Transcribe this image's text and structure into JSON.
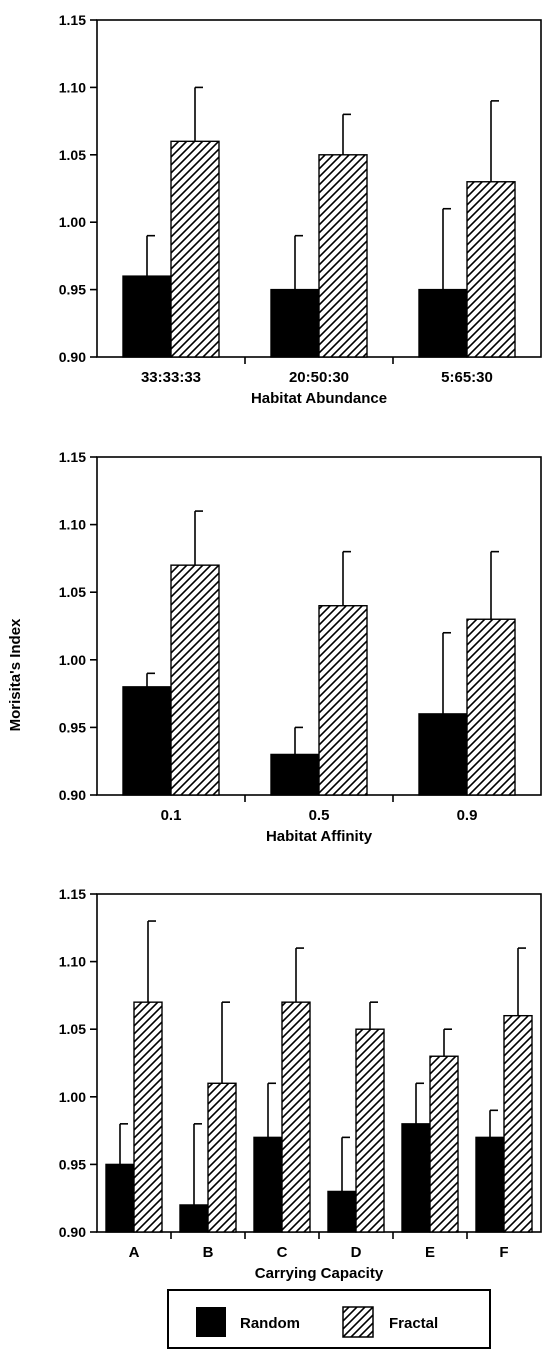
{
  "figure": {
    "ylabel": "Morisita's Index",
    "legend": {
      "position": "bottom-center",
      "items": [
        {
          "label": "Random",
          "pattern": "solid"
        },
        {
          "label": "Fractal",
          "pattern": "hatched"
        }
      ]
    },
    "colors": {
      "random": "#000000",
      "fractal_hatch": "#000000",
      "background": "#ffffff"
    }
  },
  "chart_data": [
    {
      "type": "bar",
      "xlabel": "Habitat Abundance",
      "categories": [
        "33:33:33",
        "20:50:30",
        "5:65:30"
      ],
      "ylim": [
        0.9,
        1.15
      ],
      "yticks": [
        "0.90",
        "0.95",
        "1.00",
        "1.05",
        "1.10",
        "1.15"
      ],
      "series": [
        {
          "name": "Random",
          "values": [
            0.96,
            0.95,
            0.95
          ],
          "errors": [
            0.03,
            0.04,
            0.06
          ]
        },
        {
          "name": "Fractal",
          "values": [
            1.06,
            1.05,
            1.03
          ],
          "errors": [
            0.04,
            0.03,
            0.06
          ]
        }
      ]
    },
    {
      "type": "bar",
      "xlabel": "Habitat Affinity",
      "categories": [
        "0.1",
        "0.5",
        "0.9"
      ],
      "ylim": [
        0.9,
        1.15
      ],
      "yticks": [
        "0.90",
        "0.95",
        "1.00",
        "1.05",
        "1.10",
        "1.15"
      ],
      "series": [
        {
          "name": "Random",
          "values": [
            0.98,
            0.93,
            0.96
          ],
          "errors": [
            0.01,
            0.02,
            0.06
          ]
        },
        {
          "name": "Fractal",
          "values": [
            1.07,
            1.04,
            1.03
          ],
          "errors": [
            0.04,
            0.04,
            0.05
          ]
        }
      ]
    },
    {
      "type": "bar",
      "xlabel": "Carrying Capacity",
      "categories": [
        "A",
        "B",
        "C",
        "D",
        "E",
        "F"
      ],
      "ylim": [
        0.9,
        1.15
      ],
      "yticks": [
        "0.90",
        "0.95",
        "1.00",
        "1.05",
        "1.10",
        "1.15"
      ],
      "series": [
        {
          "name": "Random",
          "values": [
            0.95,
            0.92,
            0.97,
            0.93,
            0.98,
            0.97
          ],
          "errors": [
            0.03,
            0.06,
            0.04,
            0.04,
            0.03,
            0.02
          ]
        },
        {
          "name": "Fractal",
          "values": [
            1.07,
            1.01,
            1.07,
            1.05,
            1.03,
            1.06
          ],
          "errors": [
            0.06,
            0.06,
            0.04,
            0.02,
            0.02,
            0.05
          ]
        }
      ]
    }
  ]
}
